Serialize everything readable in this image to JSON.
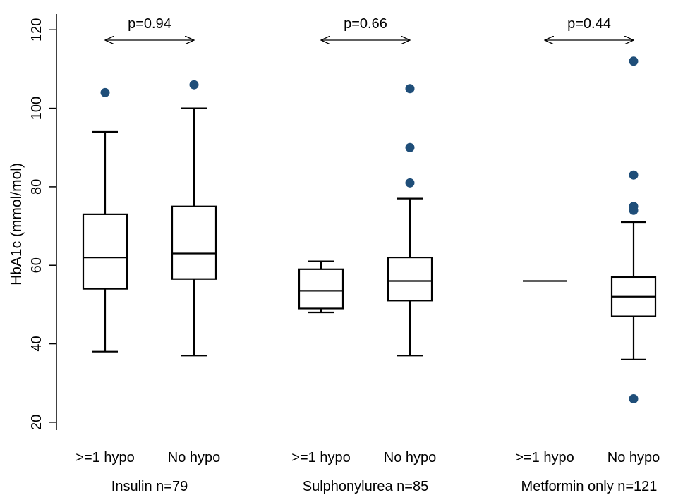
{
  "chart_data": {
    "type": "box",
    "ylabel": "HbA1c (mmol/mol)",
    "ylim": [
      18,
      124
    ],
    "yticks": [
      20,
      40,
      60,
      80,
      100,
      120
    ],
    "grid": false,
    "colors": {
      "box": "#000000",
      "outlier": "#1f4e79"
    },
    "groups": [
      {
        "label": "Insulin",
        "n_label": "n=79",
        "p_value": "p=0.94",
        "boxes": [
          {
            "label": ">=1 hypo",
            "whisker_low": 38,
            "q1": 54,
            "median": 62,
            "q3": 73,
            "whisker_high": 94,
            "outliers": [
              104
            ]
          },
          {
            "label": "No hypo",
            "whisker_low": 37,
            "q1": 56.5,
            "median": 63,
            "q3": 75,
            "whisker_high": 100,
            "outliers": [
              106
            ]
          }
        ]
      },
      {
        "label": "Sulphonylurea",
        "n_label": "n=85",
        "p_value": "p=0.66",
        "boxes": [
          {
            "label": ">=1 hypo",
            "whisker_low": 48,
            "q1": 49,
            "median": 53.5,
            "q3": 59,
            "whisker_high": 61,
            "outliers": []
          },
          {
            "label": "No hypo",
            "whisker_low": 37,
            "q1": 51,
            "median": 56,
            "q3": 62,
            "whisker_high": 77,
            "outliers": [
              81,
              90,
              105
            ]
          }
        ]
      },
      {
        "label": "Metformin only",
        "n_label": "n=121",
        "p_value": "p=0.44",
        "boxes": [
          {
            "label": ">=1 hypo",
            "whisker_low": 56,
            "q1": 56,
            "median": 56,
            "q3": 56,
            "whisker_high": 56,
            "outliers": []
          },
          {
            "label": "No hypo",
            "whisker_low": 36,
            "q1": 47,
            "median": 52,
            "q3": 57,
            "whisker_high": 71,
            "outliers": [
              26,
              74,
              75,
              83,
              112
            ]
          }
        ]
      }
    ]
  }
}
